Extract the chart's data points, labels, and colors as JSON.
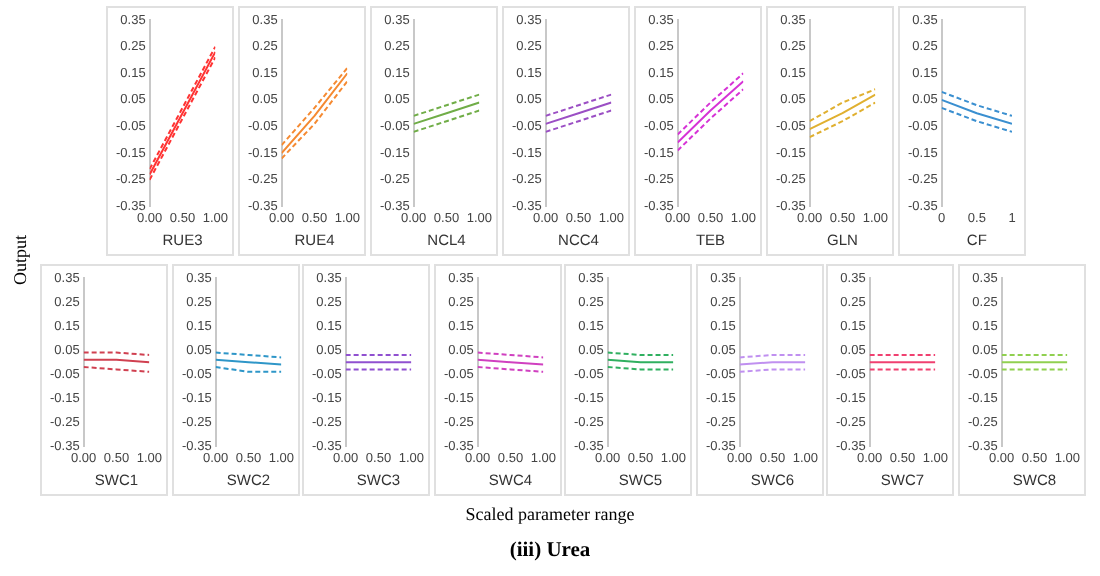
{
  "chart_data": [
    {
      "type": "line",
      "xlabel": "RUE3",
      "x": [
        0,
        0.5,
        1
      ],
      "xlim": [
        0,
        1
      ],
      "xticks": [
        {
          "value": 0,
          "label": "0.00"
        },
        {
          "value": 0.5,
          "label": "0.50"
        },
        {
          "value": 1,
          "label": "1.00"
        }
      ],
      "ylim": [
        -0.35,
        0.35
      ],
      "yticks": [
        -0.35,
        -0.25,
        -0.15,
        -0.05,
        0.05,
        0.15,
        0.25,
        0.35
      ],
      "grid": false,
      "legend": false,
      "marker": "none",
      "series": [
        {
          "color": "#ff3333",
          "line_style": "solid",
          "values": [
            -0.23,
            0,
            0.23
          ]
        },
        {
          "color": "#ff3333",
          "line_style": "dashed",
          "values": [
            -0.21,
            0.02,
            0.25
          ]
        },
        {
          "color": "#ff3333",
          "line_style": "dashed",
          "values": [
            -0.25,
            -0.02,
            0.21
          ]
        }
      ]
    },
    {
      "type": "line",
      "xlabel": "RUE4",
      "x": [
        0,
        0.5,
        1
      ],
      "xlim": [
        0,
        1
      ],
      "xticks": [
        {
          "value": 0,
          "label": "0.00"
        },
        {
          "value": 0.5,
          "label": "0.50"
        },
        {
          "value": 1,
          "label": "1.00"
        }
      ],
      "ylim": [
        -0.35,
        0.35
      ],
      "yticks": [
        -0.35,
        -0.25,
        -0.15,
        -0.05,
        0.05,
        0.15,
        0.25,
        0.35
      ],
      "grid": false,
      "legend": false,
      "marker": "none",
      "series": [
        {
          "color": "#f58a32",
          "line_style": "solid",
          "values": [
            -0.15,
            -0.01,
            0.15
          ]
        },
        {
          "color": "#f58a32",
          "line_style": "dashed",
          "values": [
            -0.12,
            0.02,
            0.17
          ]
        },
        {
          "color": "#f58a32",
          "line_style": "dashed",
          "values": [
            -0.17,
            -0.04,
            0.12
          ]
        }
      ]
    },
    {
      "type": "line",
      "xlabel": "NCL4",
      "x": [
        0,
        0.5,
        1
      ],
      "xlim": [
        0,
        1
      ],
      "xticks": [
        {
          "value": 0,
          "label": "0.00"
        },
        {
          "value": 0.5,
          "label": "0.50"
        },
        {
          "value": 1,
          "label": "1.00"
        }
      ],
      "ylim": [
        -0.35,
        0.35
      ],
      "yticks": [
        -0.35,
        -0.25,
        -0.15,
        -0.05,
        0.05,
        0.15,
        0.25,
        0.35
      ],
      "grid": false,
      "legend": false,
      "marker": "none",
      "series": [
        {
          "color": "#70ad47",
          "line_style": "solid",
          "values": [
            -0.04,
            0,
            0.04
          ]
        },
        {
          "color": "#70ad47",
          "line_style": "dashed",
          "values": [
            -0.01,
            0.03,
            0.07
          ]
        },
        {
          "color": "#70ad47",
          "line_style": "dashed",
          "values": [
            -0.07,
            -0.03,
            0.01
          ]
        }
      ]
    },
    {
      "type": "line",
      "xlabel": "NCC4",
      "x": [
        0,
        0.5,
        1
      ],
      "xlim": [
        0,
        1
      ],
      "xticks": [
        {
          "value": 0,
          "label": "0.00"
        },
        {
          "value": 0.5,
          "label": "0.50"
        },
        {
          "value": 1,
          "label": "1.00"
        }
      ],
      "ylim": [
        -0.35,
        0.35
      ],
      "yticks": [
        -0.35,
        -0.25,
        -0.15,
        -0.05,
        0.05,
        0.15,
        0.25,
        0.35
      ],
      "grid": false,
      "legend": false,
      "marker": "none",
      "series": [
        {
          "color": "#9b4fc4",
          "line_style": "solid",
          "values": [
            -0.04,
            0,
            0.04
          ]
        },
        {
          "color": "#9b4fc4",
          "line_style": "dashed",
          "values": [
            -0.01,
            0.03,
            0.07
          ]
        },
        {
          "color": "#9b4fc4",
          "line_style": "dashed",
          "values": [
            -0.07,
            -0.03,
            0.01
          ]
        }
      ]
    },
    {
      "type": "line",
      "xlabel": "TEB",
      "x": [
        0,
        0.5,
        1
      ],
      "xlim": [
        0,
        1
      ],
      "xticks": [
        {
          "value": 0,
          "label": "0.00"
        },
        {
          "value": 0.5,
          "label": "0.50"
        },
        {
          "value": 1,
          "label": "1.00"
        }
      ],
      "ylim": [
        -0.35,
        0.35
      ],
      "yticks": [
        -0.35,
        -0.25,
        -0.15,
        -0.05,
        0.05,
        0.15,
        0.25,
        0.35
      ],
      "grid": false,
      "legend": false,
      "marker": "none",
      "series": [
        {
          "color": "#d633d6",
          "line_style": "solid",
          "values": [
            -0.11,
            0.01,
            0.12
          ]
        },
        {
          "color": "#d633d6",
          "line_style": "dashed",
          "values": [
            -0.08,
            0.04,
            0.15
          ]
        },
        {
          "color": "#d633d6",
          "line_style": "dashed",
          "values": [
            -0.14,
            -0.02,
            0.09
          ]
        }
      ]
    },
    {
      "type": "line",
      "xlabel": "GLN",
      "x": [
        0,
        0.5,
        1
      ],
      "xlim": [
        0,
        1
      ],
      "xticks": [
        {
          "value": 0,
          "label": "0.00"
        },
        {
          "value": 0.5,
          "label": "0.50"
        },
        {
          "value": 1,
          "label": "1.00"
        }
      ],
      "ylim": [
        -0.35,
        0.35
      ],
      "yticks": [
        -0.35,
        -0.25,
        -0.15,
        -0.05,
        0.05,
        0.15,
        0.25,
        0.35
      ],
      "grid": false,
      "legend": false,
      "marker": "none",
      "series": [
        {
          "color": "#e0b030",
          "line_style": "solid",
          "values": [
            -0.06,
            0,
            0.07
          ]
        },
        {
          "color": "#e0b030",
          "line_style": "dashed",
          "values": [
            -0.03,
            0.04,
            0.09
          ]
        },
        {
          "color": "#e0b030",
          "line_style": "dashed",
          "values": [
            -0.09,
            -0.03,
            0.04
          ]
        }
      ]
    },
    {
      "type": "line",
      "xlabel": "CF",
      "x": [
        0,
        0.5,
        1
      ],
      "xlim": [
        0,
        1
      ],
      "xticks": [
        0,
        0.5,
        1
      ],
      "ylim": [
        -0.35,
        0.35
      ],
      "yticks": [
        -0.35,
        -0.25,
        -0.15,
        -0.05,
        0.05,
        0.15,
        0.25,
        0.35
      ],
      "grid": false,
      "legend": false,
      "marker": "none",
      "series": [
        {
          "color": "#3a8fd0",
          "line_style": "solid",
          "values": [
            0.05,
            0,
            -0.04
          ]
        },
        {
          "color": "#3a8fd0",
          "line_style": "dashed",
          "values": [
            0.08,
            0.03,
            -0.01
          ]
        },
        {
          "color": "#3a8fd0",
          "line_style": "dashed",
          "values": [
            0.02,
            -0.03,
            -0.07
          ]
        }
      ]
    },
    {
      "type": "line",
      "xlabel": "SWC1",
      "x": [
        0,
        0.5,
        1
      ],
      "xlim": [
        0,
        1
      ],
      "xticks": [
        {
          "value": 0,
          "label": "0.00"
        },
        {
          "value": 0.5,
          "label": "0.50"
        },
        {
          "value": 1,
          "label": "1.00"
        }
      ],
      "ylim": [
        -0.35,
        0.35
      ],
      "yticks": [
        -0.35,
        -0.25,
        -0.15,
        -0.05,
        0.05,
        0.15,
        0.25,
        0.35
      ],
      "grid": false,
      "legend": false,
      "marker": "none",
      "series": [
        {
          "color": "#d04050",
          "line_style": "solid",
          "values": [
            0.01,
            0.01,
            0
          ]
        },
        {
          "color": "#d04050",
          "line_style": "dashed",
          "values": [
            0.04,
            0.04,
            0.03
          ]
        },
        {
          "color": "#d04050",
          "line_style": "dashed",
          "values": [
            -0.02,
            -0.03,
            -0.04
          ]
        }
      ]
    },
    {
      "type": "line",
      "xlabel": "SWC2",
      "x": [
        0,
        0.5,
        1
      ],
      "xlim": [
        0,
        1
      ],
      "xticks": [
        {
          "value": 0,
          "label": "0.00"
        },
        {
          "value": 0.5,
          "label": "0.50"
        },
        {
          "value": 1,
          "label": "1.00"
        }
      ],
      "ylim": [
        -0.35,
        0.35
      ],
      "yticks": [
        -0.35,
        -0.25,
        -0.15,
        -0.05,
        0.05,
        0.15,
        0.25,
        0.35
      ],
      "grid": false,
      "legend": false,
      "marker": "none",
      "series": [
        {
          "color": "#2e96c8",
          "line_style": "solid",
          "values": [
            0.01,
            0,
            -0.01
          ]
        },
        {
          "color": "#2e96c8",
          "line_style": "dashed",
          "values": [
            0.04,
            0.03,
            0.02
          ]
        },
        {
          "color": "#2e96c8",
          "line_style": "dashed",
          "values": [
            -0.02,
            -0.04,
            -0.04
          ]
        }
      ]
    },
    {
      "type": "line",
      "xlabel": "SWC3",
      "x": [
        0,
        0.5,
        1
      ],
      "xlim": [
        0,
        1
      ],
      "xticks": [
        {
          "value": 0,
          "label": "0.00"
        },
        {
          "value": 0.5,
          "label": "0.50"
        },
        {
          "value": 1,
          "label": "1.00"
        }
      ],
      "ylim": [
        -0.35,
        0.35
      ],
      "yticks": [
        -0.35,
        -0.25,
        -0.15,
        -0.05,
        0.05,
        0.15,
        0.25,
        0.35
      ],
      "grid": false,
      "legend": false,
      "marker": "none",
      "series": [
        {
          "color": "#9050d0",
          "line_style": "solid",
          "values": [
            0,
            0,
            0
          ]
        },
        {
          "color": "#9050d0",
          "line_style": "dashed",
          "values": [
            0.03,
            0.03,
            0.03
          ]
        },
        {
          "color": "#9050d0",
          "line_style": "dashed",
          "values": [
            -0.03,
            -0.03,
            -0.03
          ]
        }
      ]
    },
    {
      "type": "line",
      "xlabel": "SWC4",
      "x": [
        0,
        0.5,
        1
      ],
      "xlim": [
        0,
        1
      ],
      "xticks": [
        {
          "value": 0,
          "label": "0.00"
        },
        {
          "value": 0.5,
          "label": "0.50"
        },
        {
          "value": 1,
          "label": "1.00"
        }
      ],
      "ylim": [
        -0.35,
        0.35
      ],
      "yticks": [
        -0.35,
        -0.25,
        -0.15,
        -0.05,
        0.05,
        0.15,
        0.25,
        0.35
      ],
      "grid": false,
      "legend": false,
      "marker": "none",
      "series": [
        {
          "color": "#d040c0",
          "line_style": "solid",
          "values": [
            0.01,
            0,
            -0.01
          ]
        },
        {
          "color": "#d040c0",
          "line_style": "dashed",
          "values": [
            0.04,
            0.03,
            0.02
          ]
        },
        {
          "color": "#d040c0",
          "line_style": "dashed",
          "values": [
            -0.02,
            -0.03,
            -0.04
          ]
        }
      ]
    },
    {
      "type": "line",
      "xlabel": "SWC5",
      "x": [
        0,
        0.5,
        1
      ],
      "xlim": [
        0,
        1
      ],
      "xticks": [
        {
          "value": 0,
          "label": "0.00"
        },
        {
          "value": 0.5,
          "label": "0.50"
        },
        {
          "value": 1,
          "label": "1.00"
        }
      ],
      "ylim": [
        -0.35,
        0.35
      ],
      "yticks": [
        -0.35,
        -0.25,
        -0.15,
        -0.05,
        0.05,
        0.15,
        0.25,
        0.35
      ],
      "grid": false,
      "legend": false,
      "marker": "none",
      "series": [
        {
          "color": "#30b060",
          "line_style": "solid",
          "values": [
            0.01,
            0,
            0
          ]
        },
        {
          "color": "#30b060",
          "line_style": "dashed",
          "values": [
            0.04,
            0.03,
            0.03
          ]
        },
        {
          "color": "#30b060",
          "line_style": "dashed",
          "values": [
            -0.02,
            -0.03,
            -0.03
          ]
        }
      ]
    },
    {
      "type": "line",
      "xlabel": "SWC6",
      "x": [
        0,
        0.5,
        1
      ],
      "xlim": [
        0,
        1
      ],
      "xticks": [
        {
          "value": 0,
          "label": "0.00"
        },
        {
          "value": 0.5,
          "label": "0.50"
        },
        {
          "value": 1,
          "label": "1.00"
        }
      ],
      "ylim": [
        -0.35,
        0.35
      ],
      "yticks": [
        -0.35,
        -0.25,
        -0.15,
        -0.05,
        0.05,
        0.15,
        0.25,
        0.35
      ],
      "grid": false,
      "legend": false,
      "marker": "none",
      "series": [
        {
          "color": "#c090f0",
          "line_style": "solid",
          "values": [
            -0.01,
            0,
            0
          ]
        },
        {
          "color": "#c090f0",
          "line_style": "dashed",
          "values": [
            0.02,
            0.03,
            0.03
          ]
        },
        {
          "color": "#c090f0",
          "line_style": "dashed",
          "values": [
            -0.04,
            -0.03,
            -0.03
          ]
        }
      ]
    },
    {
      "type": "line",
      "xlabel": "SWC7",
      "x": [
        0,
        0.5,
        1
      ],
      "xlim": [
        0,
        1
      ],
      "xticks": [
        {
          "value": 0,
          "label": "0.00"
        },
        {
          "value": 0.5,
          "label": "0.50"
        },
        {
          "value": 1,
          "label": "1.00"
        }
      ],
      "ylim": [
        -0.35,
        0.35
      ],
      "yticks": [
        -0.35,
        -0.25,
        -0.15,
        -0.05,
        0.05,
        0.15,
        0.25,
        0.35
      ],
      "grid": false,
      "legend": false,
      "marker": "none",
      "series": [
        {
          "color": "#f04070",
          "line_style": "solid",
          "values": [
            0,
            0,
            0
          ]
        },
        {
          "color": "#f04070",
          "line_style": "dashed",
          "values": [
            0.03,
            0.03,
            0.03
          ]
        },
        {
          "color": "#f04070",
          "line_style": "dashed",
          "values": [
            -0.03,
            -0.03,
            -0.03
          ]
        }
      ]
    },
    {
      "type": "line",
      "xlabel": "SWC8",
      "x": [
        0,
        0.5,
        1
      ],
      "xlim": [
        0,
        1
      ],
      "xticks": [
        {
          "value": 0,
          "label": "0.00"
        },
        {
          "value": 0.5,
          "label": "0.50"
        },
        {
          "value": 1,
          "label": "1.00"
        }
      ],
      "ylim": [
        -0.35,
        0.35
      ],
      "yticks": [
        -0.35,
        -0.25,
        -0.15,
        -0.05,
        0.05,
        0.15,
        0.25,
        0.35
      ],
      "grid": false,
      "legend": false,
      "marker": "none",
      "series": [
        {
          "color": "#90d050",
          "line_style": "solid",
          "values": [
            0,
            0,
            0
          ]
        },
        {
          "color": "#90d050",
          "line_style": "dashed",
          "values": [
            0.03,
            0.03,
            0.03
          ]
        },
        {
          "color": "#90d050",
          "line_style": "dashed",
          "values": [
            -0.03,
            -0.03,
            -0.03
          ]
        }
      ]
    },
    {
      "type": "other",
      "title": "(iii) Urea",
      "xlabel": "Scaled parameter range",
      "ylabel": "Output"
    }
  ]
}
